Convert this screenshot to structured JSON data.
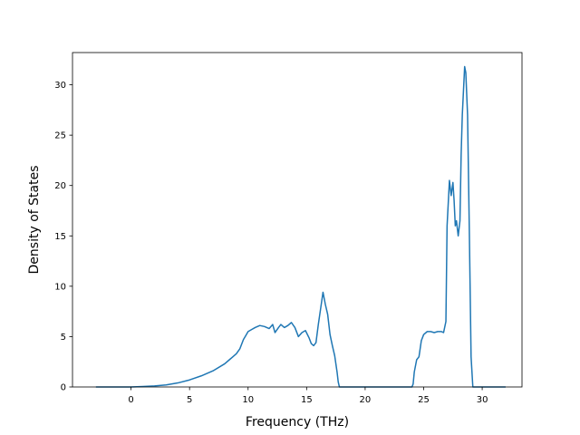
{
  "chart_data": {
    "type": "line",
    "title": "",
    "xlabel": "Frequency (THz)",
    "ylabel": "Density of States",
    "xlim": [
      -5,
      33.4
    ],
    "ylim": [
      0,
      33.2
    ],
    "xticks": [
      0,
      5,
      10,
      15,
      20,
      25,
      30
    ],
    "yticks": [
      0,
      5,
      10,
      15,
      20,
      25,
      30
    ],
    "grid": false,
    "legend": "none",
    "color": "#1f77b4",
    "series": [
      {
        "x": [
          -3.0,
          -1.0,
          0.0,
          1.0,
          2.0,
          3.0,
          4.0,
          5.0,
          6.0,
          7.0,
          8.0,
          8.5,
          9.0,
          9.3,
          9.6,
          9.8,
          10.0,
          10.3,
          10.6,
          11.0,
          11.4,
          11.8,
          12.1,
          12.3,
          12.6,
          12.8,
          13.1,
          13.4,
          13.7,
          14.0,
          14.3,
          14.6,
          14.9,
          15.2,
          15.4,
          15.6,
          15.8,
          16.0,
          16.2,
          16.4,
          16.6,
          16.8,
          17.0,
          17.2,
          17.4,
          17.6,
          17.7,
          17.8,
          18.2,
          20.0,
          22.0,
          24.0,
          24.1,
          24.2,
          24.4,
          24.6,
          24.8,
          25.0,
          25.3,
          25.6,
          25.9,
          26.2,
          26.5,
          26.7,
          26.9,
          27.0,
          27.2,
          27.35,
          27.5,
          27.6,
          27.7,
          27.8,
          27.95,
          28.1,
          28.2,
          28.3,
          28.5,
          28.6,
          28.75,
          28.9,
          29.05,
          29.2,
          29.4,
          30.0,
          32.0
        ],
        "y": [
          0.0,
          0.0,
          0.0,
          0.05,
          0.1,
          0.2,
          0.4,
          0.7,
          1.1,
          1.6,
          2.3,
          2.8,
          3.3,
          3.8,
          4.7,
          5.1,
          5.5,
          5.7,
          5.9,
          6.1,
          6.0,
          5.8,
          6.2,
          5.4,
          5.9,
          6.2,
          5.9,
          6.1,
          6.4,
          5.9,
          5.0,
          5.4,
          5.6,
          4.9,
          4.3,
          4.1,
          4.4,
          6.2,
          7.8,
          9.4,
          8.2,
          7.2,
          5.2,
          4.1,
          3.1,
          1.5,
          0.5,
          0.0,
          0.0,
          0.0,
          0.0,
          0.0,
          0.3,
          1.5,
          2.7,
          3.0,
          4.6,
          5.2,
          5.5,
          5.5,
          5.4,
          5.5,
          5.5,
          5.4,
          6.5,
          16.0,
          20.5,
          19.0,
          20.3,
          18.5,
          16.0,
          16.5,
          15.0,
          16.5,
          23.0,
          27.0,
          31.8,
          31.2,
          27.0,
          15.5,
          3.0,
          0.0,
          0.0,
          0.0,
          0.0
        ]
      }
    ]
  }
}
